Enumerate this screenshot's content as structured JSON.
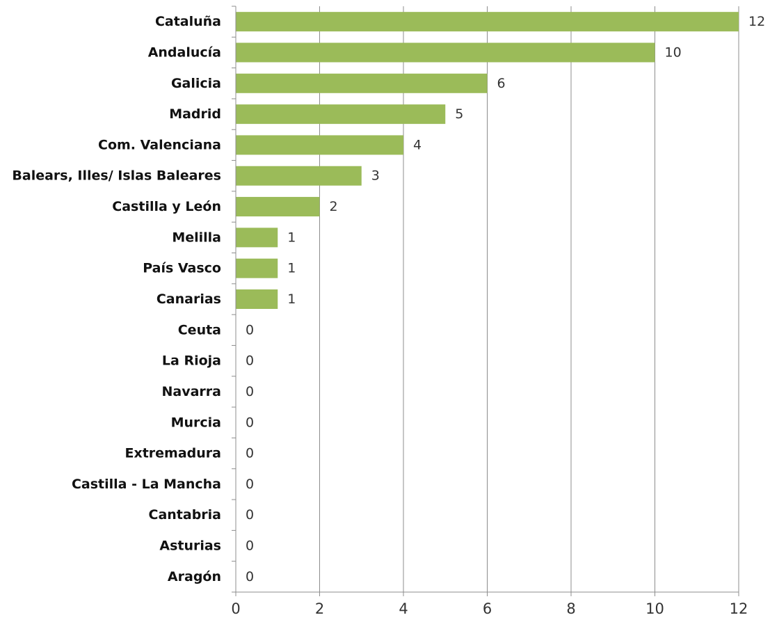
{
  "chart_data": {
    "type": "bar",
    "orientation": "horizontal",
    "title": "",
    "xlabel": "",
    "ylabel": "",
    "categories": [
      "Cataluña",
      "Andalucía",
      "Galicia",
      "Madrid",
      "Com. Valenciana",
      "Balears, Illes/ Islas Baleares",
      "Castilla y León",
      "Melilla",
      "País Vasco",
      "Canarias",
      "Ceuta",
      "La Rioja",
      "Navarra",
      "Murcia",
      "Extremadura",
      "Castilla - La Mancha",
      "Cantabria",
      "Asturias",
      "Aragón"
    ],
    "values": [
      12,
      10,
      6,
      5,
      4,
      3,
      2,
      1,
      1,
      1,
      0,
      0,
      0,
      0,
      0,
      0,
      0,
      0,
      0
    ],
    "data_labels": [
      "12",
      "10",
      "6",
      "5",
      "4",
      "3",
      "2",
      "1",
      "1",
      "1",
      "0",
      "0",
      "0",
      "0",
      "0",
      "0",
      "0",
      "0",
      "0"
    ],
    "xlim": [
      0,
      12
    ],
    "x_ticks": [
      0,
      2,
      4,
      6,
      8,
      10,
      12
    ],
    "x_tick_labels": [
      "0",
      "2",
      "4",
      "6",
      "8",
      "10",
      "12"
    ],
    "grid": "vertical",
    "legend": "none",
    "bar_color": "#9BBB59",
    "grid_color": "#8C8C8C",
    "axis_color": "#8C8C8C"
  }
}
